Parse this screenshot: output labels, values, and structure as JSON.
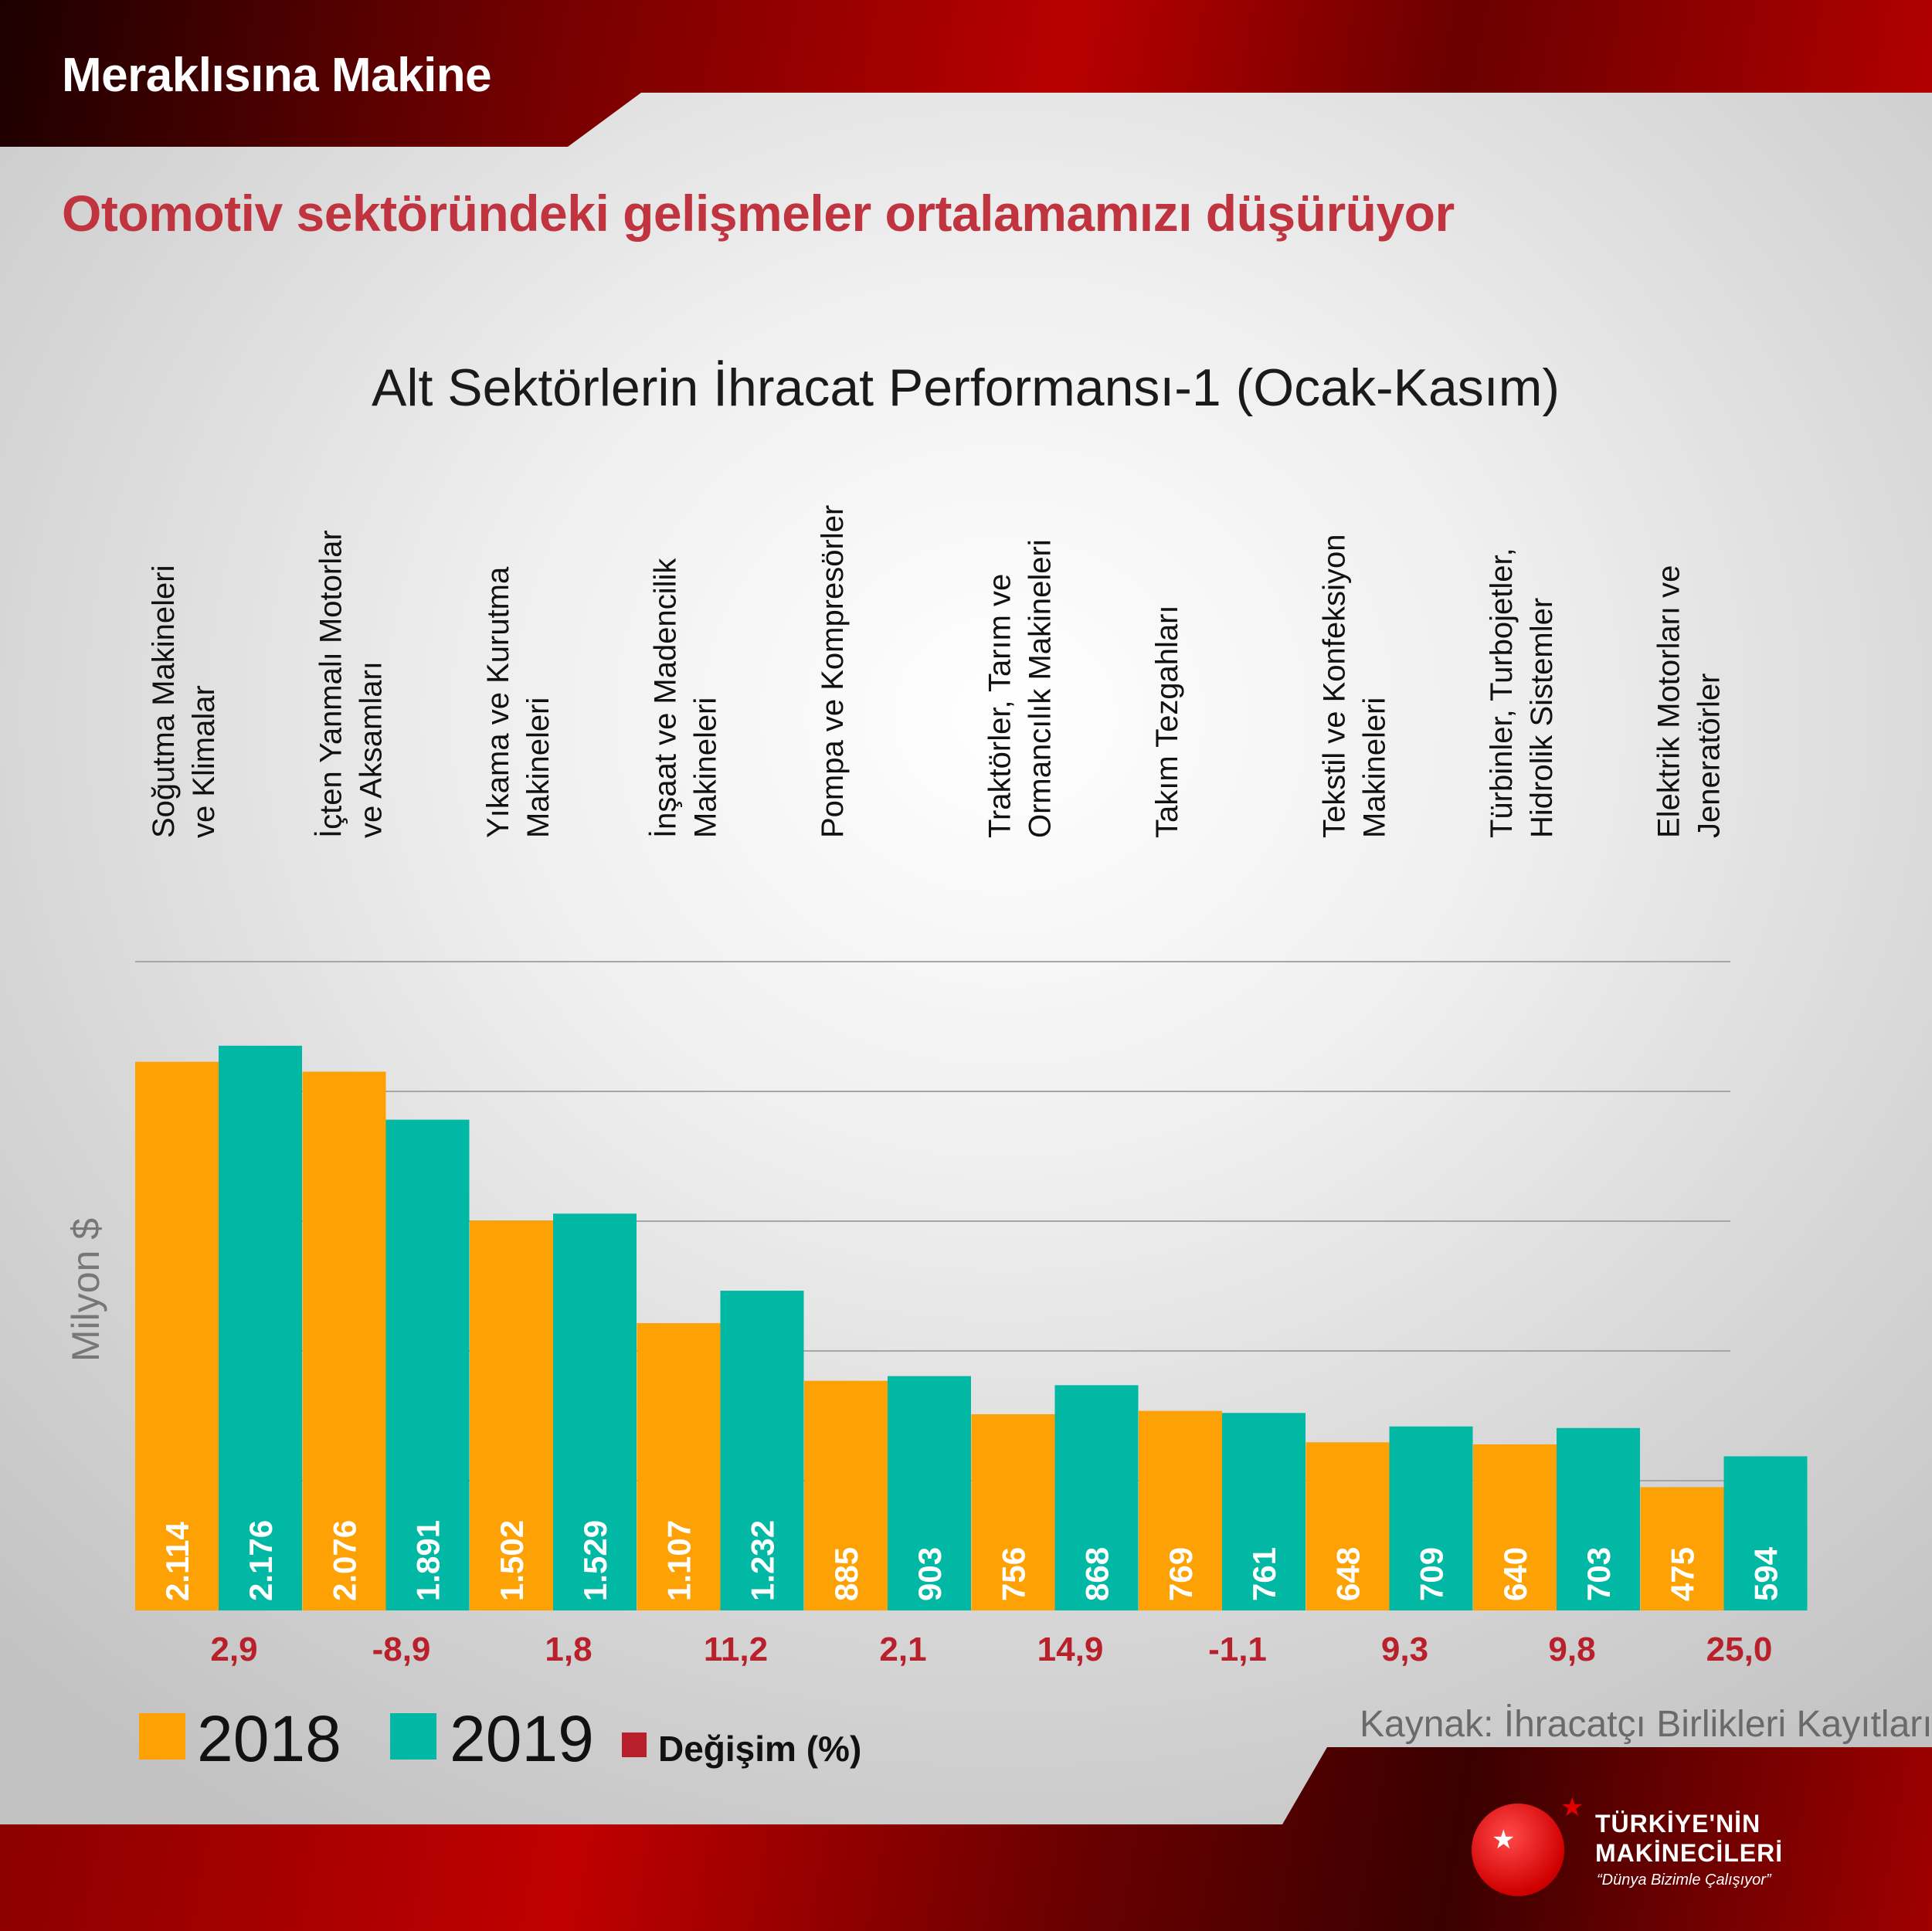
{
  "brand_title": "Meraklısına Makine",
  "headline": "Otomotiv sektöründeki gelişmeler ortalamamızı düşürüyor",
  "colors": {
    "series_2018": "#fea104",
    "series_2019": "#00b8a4",
    "change": "#b8202b",
    "headline": "#c0343f"
  },
  "chart_data": {
    "type": "bar",
    "title": "Alt Sektörlerin İhracat Performansı-1 (Ocak-Kasım)",
    "ylabel": "Milyon $",
    "ylim": [
      0,
      2500
    ],
    "grid": true,
    "y_ticks_labeled": false,
    "categories": [
      [
        "Soğutma Makineleri",
        "ve Klimalar"
      ],
      [
        "İçten Yanmalı Motorlar",
        "ve Aksamları"
      ],
      [
        "Yıkama ve Kurutma",
        "Makineleri"
      ],
      [
        "İnşaat ve Madencilik",
        "Makineleri"
      ],
      [
        "Pompa ve Kompresörler"
      ],
      [
        "Traktörler, Tarım ve",
        "Ormancılık Makineleri"
      ],
      [
        "Takım Tezgahları"
      ],
      [
        "Tekstil ve Konfeksiyon",
        "Makineleri"
      ],
      [
        "Türbinler, Turbojetler,",
        "Hidrolik Sistemler"
      ],
      [
        "Elektrik Motorları ve",
        "Jeneratörler"
      ]
    ],
    "series": [
      {
        "name": "2018",
        "values": [
          2114,
          2076,
          1502,
          1107,
          885,
          756,
          769,
          648,
          640,
          475
        ],
        "labels": [
          "2.114",
          "2.076",
          "1.502",
          "1.107",
          "885",
          "756",
          "769",
          "648",
          "640",
          "475"
        ]
      },
      {
        "name": "2019",
        "values": [
          2176,
          1891,
          1529,
          1232,
          903,
          868,
          761,
          709,
          703,
          594
        ],
        "labels": [
          "2.176",
          "1.891",
          "1.529",
          "1.232",
          "903",
          "868",
          "761",
          "709",
          "703",
          "594"
        ]
      }
    ],
    "change": {
      "name": "Değişim (%)",
      "values": [
        2.9,
        -8.9,
        1.8,
        11.2,
        2.1,
        14.9,
        -1.1,
        9.3,
        9.8,
        25.0
      ],
      "labels": [
        "2,9",
        "-8,9",
        "1,8",
        "11,2",
        "2,1",
        "14,9",
        "-1,1",
        "9,3",
        "9,8",
        "25,0"
      ]
    },
    "legend": {
      "placement": "bottom-left",
      "items": [
        "2018",
        "2019",
        "Değişim (%)"
      ]
    },
    "source": "Kaynak: İhracatçı Birlikleri Kayıtları"
  },
  "logo": {
    "line1": "TÜRKİYE'NİN",
    "line2": "MAKİNECİLERİ",
    "slogan": "“Dünya Bizimle Çalışıyor”"
  }
}
